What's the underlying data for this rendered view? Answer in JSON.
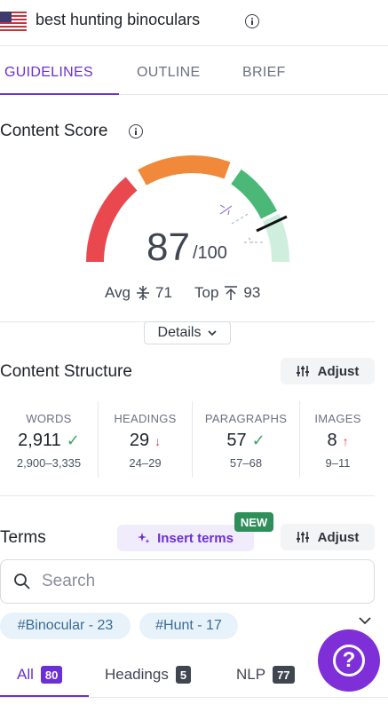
{
  "header": {
    "keyword": "best hunting binoculars",
    "flag_icon": "us-flag-icon",
    "info_icon": "info-icon"
  },
  "tabs": [
    {
      "label": "GUIDELINES",
      "active": true
    },
    {
      "label": "OUTLINE"
    },
    {
      "label": "BRIEF"
    }
  ],
  "content_score": {
    "title": "Content Score",
    "value": "87",
    "max": "/100",
    "avg_label": "Avg",
    "avg_value": "71",
    "top_label": "Top",
    "top_value": "93",
    "details_label": "Details",
    "colors": {
      "low": "#e8484e",
      "mid": "#f08a3a",
      "high": "#4cb878",
      "target": "#cfeedd"
    }
  },
  "structure": {
    "title": "Content Structure",
    "adjust_label": "Adjust",
    "stats": [
      {
        "label": "WORDS",
        "value": "2,911",
        "status": "ok",
        "range": "2,900–3,335"
      },
      {
        "label": "HEADINGS",
        "value": "29",
        "status": "down",
        "range": "24–29"
      },
      {
        "label": "PARAGRAPHS",
        "value": "57",
        "status": "ok",
        "range": "57–68"
      },
      {
        "label": "IMAGES",
        "value": "8",
        "status": "up",
        "range": "9–11"
      }
    ]
  },
  "terms": {
    "title": "Terms",
    "insert_label": "Insert terms",
    "new_badge": "NEW",
    "adjust_label": "Adjust",
    "search_placeholder": "Search",
    "chips": [
      "#Binocular - 23",
      "#Hunt - 17"
    ],
    "filter_tabs": [
      {
        "label": "All",
        "count": "80",
        "active": true
      },
      {
        "label": "Headings",
        "count": "5"
      },
      {
        "label": "NLP",
        "count": "77"
      }
    ]
  },
  "help": {
    "glyph": "?"
  }
}
